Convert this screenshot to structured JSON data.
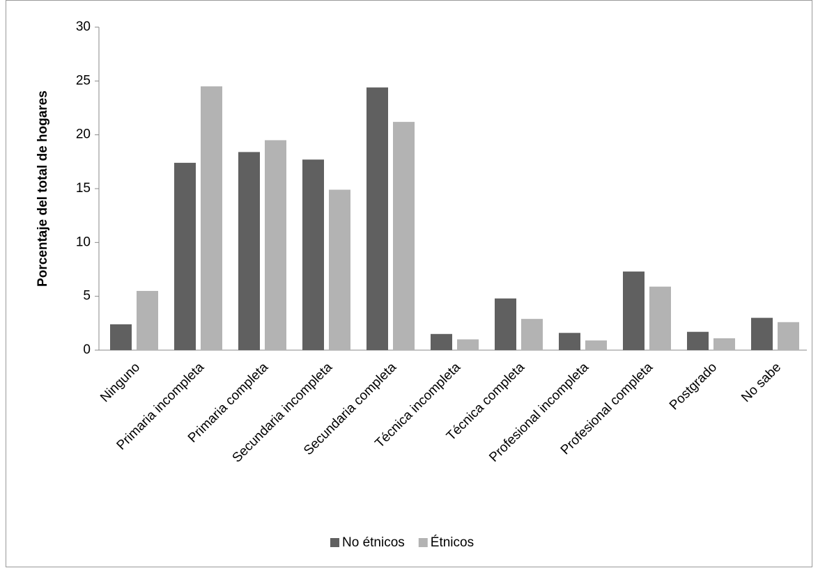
{
  "chart_data": {
    "type": "bar",
    "y_label": "Porcentaje del total de hogares",
    "categories": [
      "Ninguno",
      "Primaria incompleta",
      "Primaria completa",
      "Secundaria incompleta",
      "Secundaria completa",
      "Técnica incompleta",
      "Técnica completa",
      "Profesional incompleta",
      "Profesional completa",
      "Postgrado",
      "No sabe"
    ],
    "series": [
      {
        "name": "No étnicos",
        "color": "#606060",
        "values": [
          2.4,
          17.4,
          18.4,
          17.7,
          24.4,
          1.5,
          4.8,
          1.6,
          7.3,
          1.7,
          3.0
        ]
      },
      {
        "name": "Étnicos",
        "color": "#b3b3b3",
        "values": [
          5.5,
          24.5,
          19.5,
          14.9,
          21.2,
          1.0,
          2.9,
          0.9,
          5.9,
          1.1,
          2.6
        ]
      }
    ],
    "ylim": [
      0,
      30
    ],
    "yticks": [
      0,
      5,
      10,
      15,
      20,
      25,
      30
    ],
    "grid": false,
    "legend": "bottom"
  }
}
